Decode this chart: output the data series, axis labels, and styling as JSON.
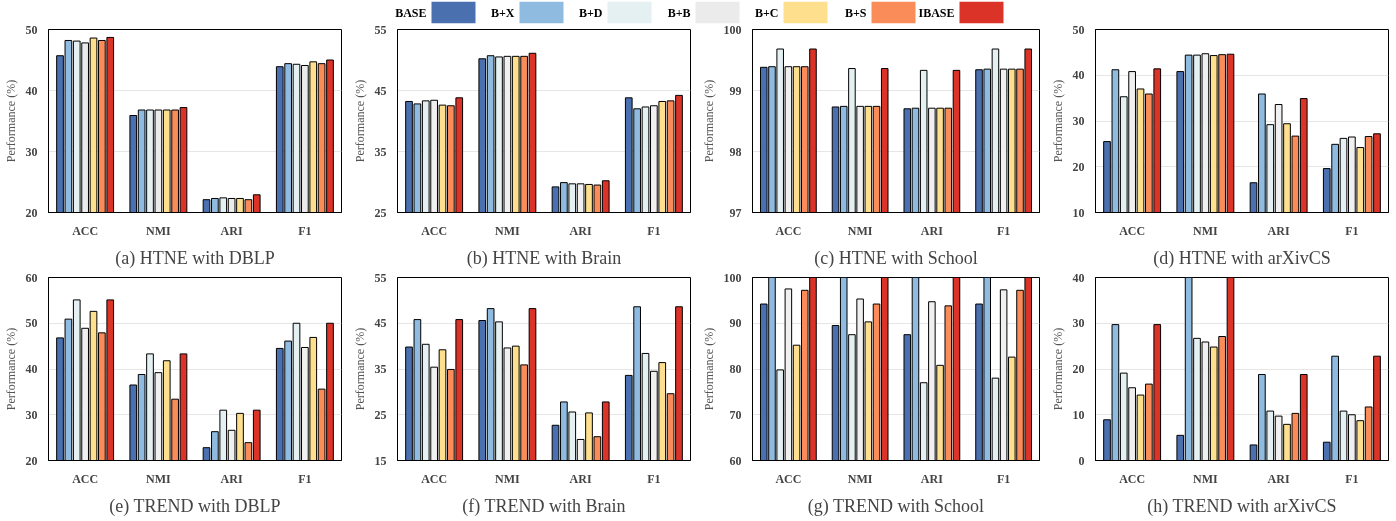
{
  "chart_data": [
    {
      "type": "bar",
      "title": "(a) HTNE with DBLP",
      "ylabel": "Performance (%)",
      "categories": [
        "ACC",
        "NMI",
        "ARI",
        "F1"
      ],
      "ylim": [
        20,
        50
      ],
      "yticks": [
        20,
        30,
        40,
        50
      ],
      "grid": "y",
      "legend": "top",
      "series": [
        {
          "name": "BASE",
          "color": "#4a70b0",
          "values": [
            45.7,
            35.9,
            22.1,
            43.9
          ]
        },
        {
          "name": "B+X",
          "color": "#8fbbe0",
          "values": [
            48.2,
            36.8,
            22.3,
            44.4
          ]
        },
        {
          "name": "B+D",
          "color": "#e4f0f2",
          "values": [
            48.1,
            36.8,
            22.4,
            44.3
          ]
        },
        {
          "name": "B+B",
          "color": "#ebebeb",
          "values": [
            47.8,
            36.8,
            22.3,
            44.1
          ]
        },
        {
          "name": "B+C",
          "color": "#fddf8e",
          "values": [
            48.6,
            36.8,
            22.3,
            44.7
          ]
        },
        {
          "name": "B+S",
          "color": "#f98c59",
          "values": [
            48.2,
            36.8,
            22.1,
            44.4
          ]
        },
        {
          "name": "IBASE",
          "color": "#db3327",
          "values": [
            48.7,
            37.2,
            22.9,
            45.0
          ]
        }
      ]
    },
    {
      "type": "bar",
      "title": "(b) HTNE with Brain",
      "ylabel": "Performance (%)",
      "categories": [
        "ACC",
        "NMI",
        "ARI",
        "F1"
      ],
      "ylim": [
        25,
        55
      ],
      "yticks": [
        25,
        35,
        45,
        55
      ],
      "grid": "y",
      "series": [
        {
          "color": "#4a70b0",
          "values": [
            43.2,
            50.2,
            29.2,
            43.8
          ]
        },
        {
          "color": "#8fbbe0",
          "values": [
            42.8,
            50.7,
            29.9,
            42.0
          ]
        },
        {
          "color": "#e4f0f2",
          "values": [
            43.3,
            50.5,
            29.7,
            42.3
          ]
        },
        {
          "color": "#f0f0f0",
          "values": [
            43.4,
            50.6,
            29.7,
            42.5
          ]
        },
        {
          "color": "#fddf8e",
          "values": [
            42.6,
            50.6,
            29.6,
            43.2
          ]
        },
        {
          "color": "#f98c59",
          "values": [
            42.5,
            50.6,
            29.5,
            43.3
          ]
        },
        {
          "color": "#db3327",
          "values": [
            43.8,
            51.1,
            30.2,
            44.2
          ]
        }
      ]
    },
    {
      "type": "bar",
      "title": "(c) HTNE with School",
      "ylabel": "Performance (%)",
      "categories": [
        "ACC",
        "NMI",
        "ARI",
        "F1"
      ],
      "ylim": [
        97,
        100
      ],
      "yticks": [
        97,
        98,
        99,
        100
      ],
      "grid": "y",
      "series": [
        {
          "color": "#4a70b0",
          "values": [
            99.38,
            98.73,
            98.7,
            99.34
          ]
        },
        {
          "color": "#8fbbe0",
          "values": [
            99.39,
            98.74,
            98.71,
            99.35
          ]
        },
        {
          "color": "#e4f0f2",
          "values": [
            99.68,
            99.36,
            99.33,
            99.68
          ]
        },
        {
          "color": "#f0f0f0",
          "values": [
            99.39,
            98.74,
            98.71,
            99.35
          ]
        },
        {
          "color": "#fddf8e",
          "values": [
            99.39,
            98.74,
            98.71,
            99.35
          ]
        },
        {
          "color": "#f98c59",
          "values": [
            99.39,
            98.74,
            98.71,
            99.35
          ]
        },
        {
          "color": "#db3327",
          "values": [
            99.68,
            99.36,
            99.33,
            99.68
          ]
        }
      ]
    },
    {
      "type": "bar",
      "title": "(d) HTNE with arXivCS",
      "ylabel": "Performance (%)",
      "categories": [
        "ACC",
        "NMI",
        "ARI",
        "F1"
      ],
      "ylim": [
        10,
        50
      ],
      "yticks": [
        10,
        20,
        30,
        40,
        50
      ],
      "grid": "y",
      "series": [
        {
          "color": "#4a70b0",
          "values": [
            25.5,
            40.8,
            16.5,
            19.6
          ]
        },
        {
          "color": "#8fbbe0",
          "values": [
            41.2,
            44.4,
            35.9,
            24.9
          ]
        },
        {
          "color": "#e4f0f2",
          "values": [
            35.3,
            44.4,
            29.2,
            26.2
          ]
        },
        {
          "color": "#f0f0f0",
          "values": [
            40.8,
            44.7,
            33.6,
            26.5
          ]
        },
        {
          "color": "#fddf8e",
          "values": [
            37.0,
            44.3,
            29.4,
            24.2
          ]
        },
        {
          "color": "#f98c59",
          "values": [
            35.9,
            44.5,
            26.7,
            26.6
          ]
        },
        {
          "color": "#db3327",
          "values": [
            41.4,
            44.6,
            34.9,
            27.2
          ]
        }
      ]
    },
    {
      "type": "bar",
      "title": "(e) TREND with DBLP",
      "ylabel": "Performance (%)",
      "categories": [
        "ACC",
        "NMI",
        "ARI",
        "F1"
      ],
      "ylim": [
        20,
        60
      ],
      "yticks": [
        20,
        30,
        40,
        50,
        60
      ],
      "grid": "y",
      "series": [
        {
          "color": "#4a70b0",
          "values": [
            46.8,
            36.5,
            22.8,
            44.5
          ]
        },
        {
          "color": "#8fbbe0",
          "values": [
            50.9,
            38.8,
            26.3,
            46.1
          ]
        },
        {
          "color": "#e4f0f2",
          "values": [
            55.1,
            43.3,
            31.0,
            50.0
          ]
        },
        {
          "color": "#f0f0f0",
          "values": [
            48.9,
            39.2,
            26.6,
            44.7
          ]
        },
        {
          "color": "#fddf8e",
          "values": [
            52.6,
            41.8,
            30.3,
            46.9
          ]
        },
        {
          "color": "#f98c59",
          "values": [
            47.9,
            33.4,
            23.9,
            35.6
          ]
        },
        {
          "color": "#db3327",
          "values": [
            55.1,
            43.3,
            31.0,
            50.0
          ]
        }
      ]
    },
    {
      "type": "bar",
      "title": "(f) TREND with Brain",
      "ylabel": "Performance (%)",
      "categories": [
        "ACC",
        "NMI",
        "ARI",
        "F1"
      ],
      "ylim": [
        15,
        55
      ],
      "yticks": [
        15,
        25,
        35,
        45,
        55
      ],
      "grid": "y",
      "series": [
        {
          "color": "#4a70b0",
          "values": [
            39.8,
            45.6,
            22.7,
            33.6
          ]
        },
        {
          "color": "#8fbbe0",
          "values": [
            45.8,
            48.2,
            27.8,
            48.6
          ]
        },
        {
          "color": "#e4f0f2",
          "values": [
            40.4,
            45.3,
            25.6,
            38.4
          ]
        },
        {
          "color": "#f0f0f0",
          "values": [
            35.4,
            39.6,
            19.6,
            34.5
          ]
        },
        {
          "color": "#fddf8e",
          "values": [
            39.2,
            40.0,
            25.4,
            36.4
          ]
        },
        {
          "color": "#f98c59",
          "values": [
            34.9,
            35.9,
            20.2,
            29.6
          ]
        },
        {
          "color": "#db3327",
          "values": [
            45.8,
            48.2,
            27.8,
            48.6
          ]
        }
      ]
    },
    {
      "type": "bar",
      "title": "(g) TREND with School",
      "ylabel": "Performance (%)",
      "categories": [
        "ACC",
        "NMI",
        "ARI",
        "F1"
      ],
      "ylim": [
        60,
        100
      ],
      "yticks": [
        60,
        70,
        80,
        90,
        100
      ],
      "grid": "y",
      "series": [
        {
          "color": "#4a70b0",
          "values": [
            94.2,
            89.5,
            87.5,
            94.2
          ]
        },
        {
          "color": "#8fbbe0",
          "values": [
            100,
            100,
            100,
            100
          ]
        },
        {
          "color": "#e4f0f2",
          "values": [
            79.8,
            87.5,
            77.0,
            78.0
          ]
        },
        {
          "color": "#f0f0f0",
          "values": [
            97.5,
            95.3,
            94.7,
            97.3
          ]
        },
        {
          "color": "#fddf8e",
          "values": [
            85.2,
            90.3,
            80.8,
            82.6
          ]
        },
        {
          "color": "#f98c59",
          "values": [
            97.2,
            94.2,
            93.8,
            97.2
          ]
        },
        {
          "color": "#db3327",
          "values": [
            100,
            100,
            100,
            100
          ]
        }
      ]
    },
    {
      "type": "bar",
      "title": "(h) TREND with arXivCS",
      "ylabel": "Performance (%)",
      "categories": [
        "ACC",
        "NMI",
        "ARI",
        "F1"
      ],
      "ylim": [
        0,
        40
      ],
      "yticks": [
        0,
        10,
        20,
        30,
        40
      ],
      "grid": "y",
      "series": [
        {
          "color": "#4a70b0",
          "values": [
            8.9,
            5.5,
            3.4,
            4.0
          ]
        },
        {
          "color": "#8fbbe0",
          "values": [
            29.7,
            40,
            18.8,
            22.8
          ]
        },
        {
          "color": "#e4f0f2",
          "values": [
            19.1,
            26.7,
            10.8,
            10.8
          ]
        },
        {
          "color": "#f0f0f0",
          "values": [
            15.9,
            25.9,
            9.7,
            10.0
          ]
        },
        {
          "color": "#fddf8e",
          "values": [
            14.3,
            24.8,
            7.9,
            8.7
          ]
        },
        {
          "color": "#f98c59",
          "values": [
            16.7,
            27.1,
            10.3,
            11.7
          ]
        },
        {
          "color": "#db3327",
          "values": [
            29.7,
            40,
            18.8,
            22.8
          ]
        }
      ]
    }
  ]
}
